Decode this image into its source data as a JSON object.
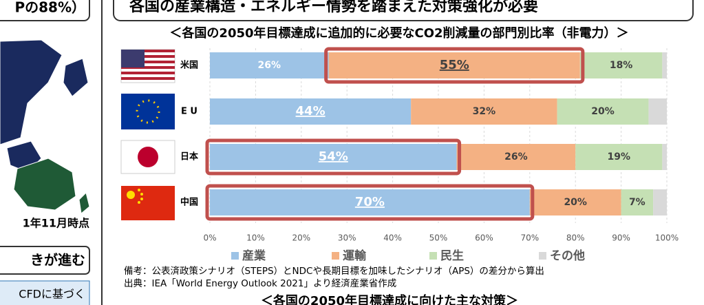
{
  "header": {
    "title": "各国の産業構造・エネルギー情勢を踏まえた対策強化が必要"
  },
  "left_panel": {
    "top_text": "Pの88%）",
    "map_caption": "1年11月時点",
    "box_heading": "きが進む",
    "box_text": "CFDに基づく"
  },
  "chart_data": {
    "type": "stacked-bar-horizontal",
    "title": "＜各国の2050年目標達成に追加的に必要なCO2削減量の部門別比率（非電力）＞",
    "categories": [
      "米国",
      "E U",
      "日本",
      "中国"
    ],
    "series": [
      {
        "name": "産業",
        "color": "#9dc3e6",
        "values": [
          26,
          44,
          54,
          70
        ],
        "value_labels": [
          "26%",
          "44%",
          "54%",
          "70%"
        ]
      },
      {
        "name": "運輸",
        "color": "#f4b183",
        "values": [
          55,
          32,
          26,
          20
        ],
        "value_labels": [
          "55%",
          "32%",
          "26%",
          "20%"
        ]
      },
      {
        "name": "民生",
        "color": "#c5e0b4",
        "values": [
          18,
          20,
          19,
          7
        ],
        "value_labels": [
          "18%",
          "20%",
          "19%",
          "7%"
        ]
      },
      {
        "name": "その他",
        "color": "#d9d9d9",
        "values": [
          1,
          4,
          1,
          3
        ]
      }
    ],
    "xlim": [
      0,
      100
    ],
    "xticks": [
      {
        "value": 0,
        "label": "0%"
      },
      {
        "value": 10,
        "label": "10%"
      },
      {
        "value": 20,
        "label": "20%"
      },
      {
        "value": 30,
        "label": "30%"
      },
      {
        "value": 40,
        "label": "40%"
      },
      {
        "value": 50,
        "label": "50%"
      },
      {
        "value": 60,
        "label": "60%"
      },
      {
        "value": 70,
        "label": "70%"
      },
      {
        "value": 80,
        "label": "80%"
      },
      {
        "value": 90,
        "label": "90%"
      },
      {
        "value": 100,
        "label": "100%"
      }
    ],
    "grid": true,
    "notes": [
      "備考：公表済政策シナリオ（STEPS）とNDCや長期目標を加味したシナリオ（APS）の差分から算出",
      "出典：IEA「World Energy Outlook 2021」より経済産業省作成"
    ]
  },
  "next_section": {
    "title": "＜各国の2050年目標達成に向けた主な対策＞"
  }
}
